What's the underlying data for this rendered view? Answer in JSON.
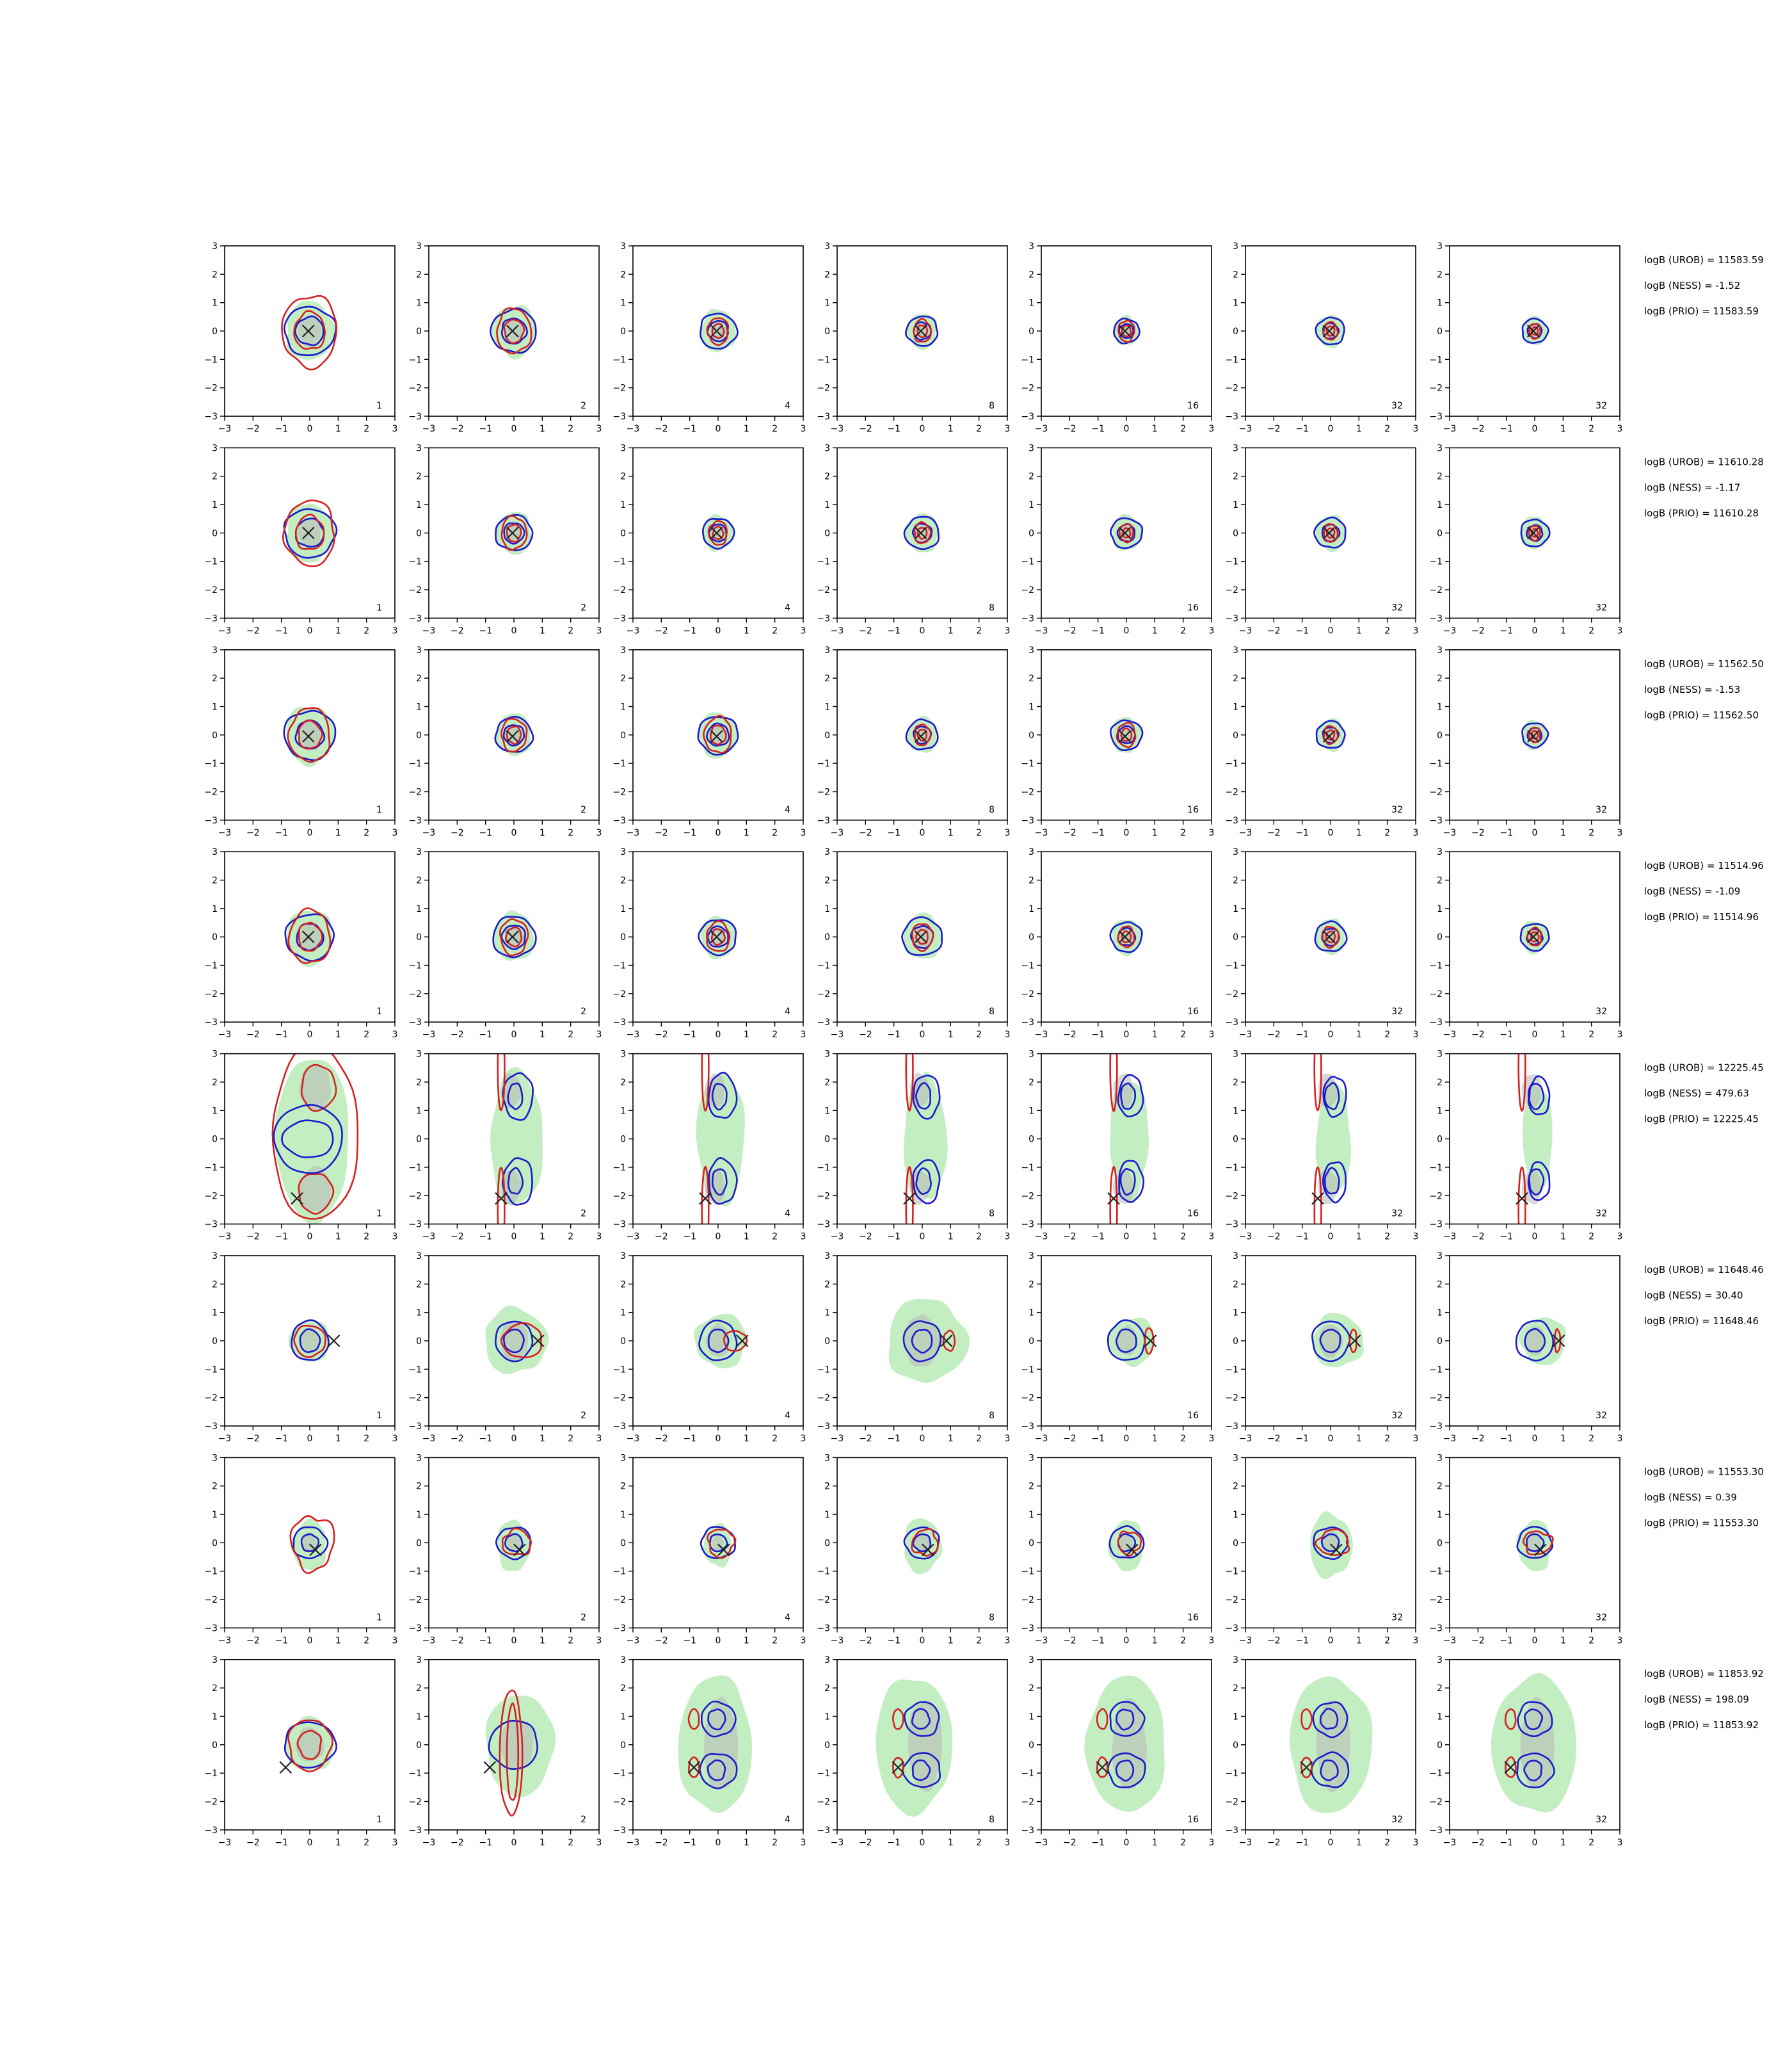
{
  "chart_data": {
    "type": "contour-grid",
    "rows": 8,
    "cols": 7,
    "axis": {
      "xlim": [
        -3,
        3
      ],
      "ylim": [
        -3,
        3
      ],
      "xticks": [
        -3,
        -2,
        -1,
        0,
        1,
        2,
        3
      ],
      "yticks": [
        -3,
        -2,
        -1,
        0,
        1,
        2,
        3
      ],
      "xtick_labels": [
        "−3",
        "−2",
        "−1",
        "0",
        "1",
        "2",
        "3"
      ],
      "ytick_labels": [
        "−3",
        "−2",
        "−1",
        "0",
        "1",
        "2",
        "3"
      ],
      "grid": false
    },
    "colors": {
      "red_contour": "#d62020",
      "blue_contour": "#1a1acc",
      "green_fill": "#90e090",
      "grey_fill": "#b8b8b8",
      "marker": "#222222"
    },
    "step_labels": [
      "1",
      "2",
      "4",
      "8",
      "16",
      "32",
      "32"
    ],
    "rows_data": [
      {
        "logb": [
          "logB (UROB) = 11583.59",
          "logB (NESS) = -1.52",
          "logB (PRIO) = 11583.59"
        ],
        "kind": "gauss",
        "marker": [
          -0.05,
          0.0
        ],
        "blue_r": [
          0.9,
          0.8,
          0.65,
          0.55,
          0.45,
          0.5,
          0.45
        ],
        "red_r": [
          1.2,
          0.75,
          0.45,
          0.38,
          0.35,
          0.3,
          0.25
        ]
      },
      {
        "logb": [
          "logB (UROB) = 11610.28",
          "logB (NESS) = -1.17",
          "logB (PRIO) = 11610.28"
        ],
        "kind": "gauss",
        "marker": [
          -0.05,
          0.0
        ],
        "blue_r": [
          0.9,
          0.65,
          0.55,
          0.6,
          0.55,
          0.55,
          0.5
        ],
        "red_r": [
          1.1,
          0.55,
          0.4,
          0.35,
          0.3,
          0.3,
          0.25
        ]
      },
      {
        "logb": [
          "logB (UROB) = 11562.50",
          "logB (NESS) = -1.53",
          "logB (PRIO) = 11562.50"
        ],
        "kind": "gauss",
        "marker": [
          -0.05,
          -0.05
        ],
        "blue_r": [
          0.9,
          0.65,
          0.7,
          0.55,
          0.55,
          0.5,
          0.45
        ],
        "red_r": [
          0.9,
          0.55,
          0.6,
          0.35,
          0.4,
          0.3,
          0.25
        ]
      },
      {
        "logb": [
          "logB (UROB) = 11514.96",
          "logB (NESS) = -1.09",
          "logB (PRIO) = 11514.96"
        ],
        "kind": "gauss",
        "marker": [
          -0.05,
          0.0
        ],
        "blue_r": [
          0.85,
          0.75,
          0.65,
          0.7,
          0.55,
          0.55,
          0.5
        ],
        "red_r": [
          0.9,
          0.6,
          0.5,
          0.45,
          0.35,
          0.35,
          0.3
        ]
      },
      {
        "logb": [
          "logB (UROB) = 12225.45",
          "logB (NESS) = 479.63",
          "logB (PRIO) = 12225.45"
        ],
        "kind": "bimodal",
        "marker": [
          -0.45,
          -2.1
        ]
      },
      {
        "logb": [
          "logB (UROB) = 11648.46",
          "logB (NESS) = 30.40",
          "logB (PRIO) = 11648.46"
        ],
        "kind": "offset",
        "marker": [
          0.85,
          0.0
        ]
      },
      {
        "logb": [
          "logB (UROB) = 11553.30",
          "logB (NESS) = 0.39",
          "logB (PRIO) = 11553.30"
        ],
        "kind": "slight",
        "marker": [
          0.2,
          -0.25
        ]
      },
      {
        "logb": [
          "logB (UROB) = 11853.92",
          "logB (NESS) = 198.09",
          "logB (PRIO) = 11853.92"
        ],
        "kind": "crescent",
        "marker": [
          -0.85,
          -0.8
        ]
      }
    ]
  }
}
